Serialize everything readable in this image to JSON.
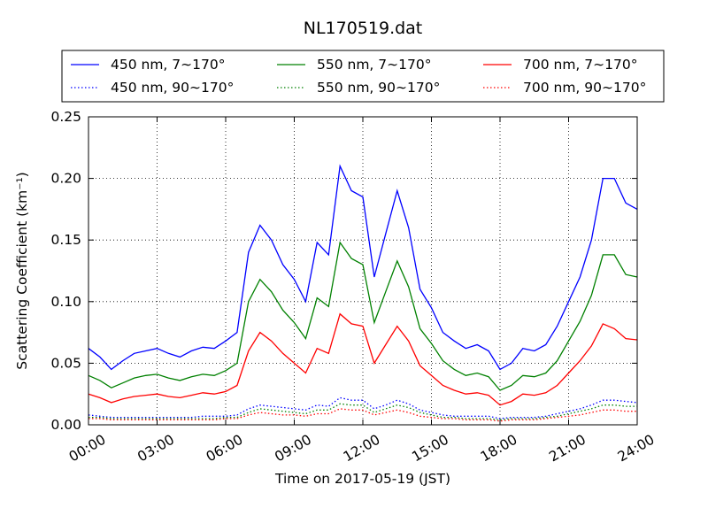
{
  "chart_data": {
    "type": "line",
    "title": "NL170519.dat",
    "xlabel": "Time on 2017-05-19 (JST)",
    "ylabel": "Scattering Coefficient (km⁻¹)",
    "xlim": [
      0,
      24
    ],
    "ylim": [
      0,
      0.25
    ],
    "x_ticks": [
      "00:00",
      "03:00",
      "06:00",
      "09:00",
      "12:00",
      "15:00",
      "18:00",
      "21:00",
      "24:00"
    ],
    "y_ticks": [
      "0.00",
      "0.05",
      "0.10",
      "0.15",
      "0.20",
      "0.25"
    ],
    "grid": true,
    "legend_position": "top",
    "x": [
      0,
      0.5,
      1,
      1.5,
      2,
      2.5,
      3,
      3.5,
      4,
      4.5,
      5,
      5.5,
      6,
      6.5,
      7,
      7.5,
      8,
      8.5,
      9,
      9.5,
      10,
      10.5,
      11,
      11.5,
      12,
      12.5,
      13,
      13.5,
      14,
      14.5,
      15,
      15.5,
      16,
      16.5,
      17,
      17.5,
      18,
      18.5,
      19,
      19.5,
      20,
      20.5,
      21,
      21.5,
      22,
      22.5,
      23,
      23.5,
      24
    ],
    "series": [
      {
        "name": "450 nm, 7∼170°",
        "color": "#0000ff",
        "style": "solid",
        "values": [
          0.062,
          0.055,
          0.045,
          0.052,
          0.058,
          0.06,
          0.062,
          0.058,
          0.055,
          0.06,
          0.063,
          0.062,
          0.068,
          0.075,
          0.14,
          0.162,
          0.15,
          0.13,
          0.118,
          0.1,
          0.148,
          0.138,
          0.21,
          0.19,
          0.185,
          0.12,
          0.155,
          0.19,
          0.16,
          0.11,
          0.095,
          0.075,
          0.068,
          0.062,
          0.065,
          0.06,
          0.045,
          0.05,
          0.062,
          0.06,
          0.065,
          0.08,
          0.1,
          0.12,
          0.15,
          0.2,
          0.2,
          0.18,
          0.175
        ]
      },
      {
        "name": "450 nm, 90∼170°",
        "color": "#0000ff",
        "style": "dotted",
        "values": [
          0.008,
          0.007,
          0.006,
          0.006,
          0.006,
          0.006,
          0.006,
          0.006,
          0.006,
          0.006,
          0.007,
          0.007,
          0.007,
          0.008,
          0.013,
          0.016,
          0.015,
          0.014,
          0.013,
          0.012,
          0.016,
          0.015,
          0.022,
          0.02,
          0.02,
          0.013,
          0.016,
          0.02,
          0.017,
          0.012,
          0.01,
          0.008,
          0.007,
          0.007,
          0.007,
          0.007,
          0.005,
          0.006,
          0.006,
          0.006,
          0.007,
          0.009,
          0.011,
          0.013,
          0.016,
          0.02,
          0.02,
          0.019,
          0.018
        ]
      },
      {
        "name": "550 nm, 7∼170°",
        "color": "#008000",
        "style": "solid",
        "values": [
          0.04,
          0.036,
          0.03,
          0.034,
          0.038,
          0.04,
          0.041,
          0.038,
          0.036,
          0.039,
          0.041,
          0.04,
          0.044,
          0.05,
          0.1,
          0.118,
          0.108,
          0.093,
          0.083,
          0.07,
          0.103,
          0.096,
          0.148,
          0.135,
          0.13,
          0.083,
          0.108,
          0.133,
          0.112,
          0.078,
          0.066,
          0.052,
          0.045,
          0.04,
          0.042,
          0.039,
          0.028,
          0.032,
          0.04,
          0.039,
          0.042,
          0.052,
          0.068,
          0.084,
          0.105,
          0.138,
          0.138,
          0.122,
          0.12
        ]
      },
      {
        "name": "550 nm, 90∼170°",
        "color": "#008000",
        "style": "dotted",
        "values": [
          0.006,
          0.006,
          0.005,
          0.005,
          0.005,
          0.005,
          0.005,
          0.005,
          0.005,
          0.005,
          0.005,
          0.005,
          0.006,
          0.006,
          0.01,
          0.013,
          0.012,
          0.011,
          0.01,
          0.009,
          0.012,
          0.012,
          0.017,
          0.016,
          0.016,
          0.01,
          0.013,
          0.016,
          0.014,
          0.01,
          0.008,
          0.006,
          0.006,
          0.005,
          0.005,
          0.005,
          0.004,
          0.005,
          0.005,
          0.005,
          0.006,
          0.007,
          0.009,
          0.011,
          0.013,
          0.016,
          0.016,
          0.015,
          0.015
        ]
      },
      {
        "name": "700 nm, 7∼170°",
        "color": "#ff0000",
        "style": "solid",
        "values": [
          0.025,
          0.022,
          0.018,
          0.021,
          0.023,
          0.024,
          0.025,
          0.023,
          0.022,
          0.024,
          0.026,
          0.025,
          0.027,
          0.032,
          0.06,
          0.075,
          0.068,
          0.058,
          0.05,
          0.042,
          0.062,
          0.058,
          0.09,
          0.082,
          0.08,
          0.05,
          0.065,
          0.08,
          0.068,
          0.048,
          0.04,
          0.032,
          0.028,
          0.025,
          0.026,
          0.024,
          0.016,
          0.019,
          0.025,
          0.024,
          0.026,
          0.032,
          0.042,
          0.052,
          0.064,
          0.082,
          0.078,
          0.07,
          0.069
        ]
      },
      {
        "name": "700 nm, 90∼170°",
        "color": "#ff0000",
        "style": "dotted",
        "values": [
          0.005,
          0.005,
          0.004,
          0.004,
          0.004,
          0.004,
          0.004,
          0.004,
          0.004,
          0.004,
          0.004,
          0.004,
          0.005,
          0.005,
          0.008,
          0.01,
          0.009,
          0.008,
          0.008,
          0.007,
          0.009,
          0.009,
          0.013,
          0.012,
          0.012,
          0.008,
          0.01,
          0.012,
          0.01,
          0.007,
          0.006,
          0.005,
          0.005,
          0.004,
          0.004,
          0.004,
          0.003,
          0.004,
          0.004,
          0.004,
          0.005,
          0.006,
          0.007,
          0.008,
          0.01,
          0.012,
          0.012,
          0.011,
          0.011
        ]
      }
    ]
  }
}
